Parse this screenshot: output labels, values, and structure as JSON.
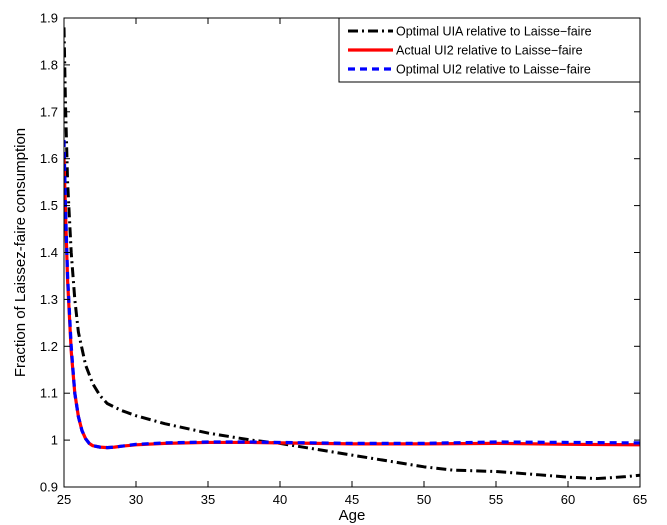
{
  "chart_data": {
    "type": "line",
    "title": "",
    "xlabel": "Age",
    "ylabel": "Fraction of Laissez-faire consumption",
    "xlim": [
      25,
      65
    ],
    "ylim": [
      0.9,
      1.9
    ],
    "xticks": [
      25,
      30,
      35,
      40,
      45,
      50,
      55,
      60,
      65
    ],
    "yticks": [
      0.9,
      1,
      1.1,
      1.2,
      1.3,
      1.4,
      1.5,
      1.6,
      1.7,
      1.8,
      1.9
    ],
    "xtick_labels": [
      "25",
      "30",
      "35",
      "40",
      "45",
      "50",
      "55",
      "60",
      "65"
    ],
    "ytick_labels": [
      "0.9",
      "1",
      "1.1",
      "1.2",
      "1.3",
      "1.4",
      "1.5",
      "1.6",
      "1.7",
      "1.8",
      "1.9"
    ],
    "grid": false,
    "legend_position": "top-right",
    "series": [
      {
        "name": "Optimal UIA relative to Laisse−faire",
        "color": "#000000",
        "style": "dashdot",
        "x": [
          25.0,
          25.1,
          25.25,
          25.5,
          25.75,
          26.0,
          26.5,
          27.0,
          27.5,
          28.0,
          29.0,
          30.0,
          32.0,
          35.0,
          38.0,
          40.0,
          42.0,
          45.0,
          48.0,
          50.0,
          52.0,
          55.0,
          58.0,
          60.0,
          62.0,
          64.0,
          65.0
        ],
        "y": [
          1.88,
          1.72,
          1.55,
          1.4,
          1.3,
          1.23,
          1.16,
          1.12,
          1.095,
          1.078,
          1.063,
          1.052,
          1.035,
          1.015,
          1.0,
          0.993,
          0.983,
          0.968,
          0.953,
          0.943,
          0.936,
          0.933,
          0.926,
          0.921,
          0.918,
          0.922,
          0.925
        ]
      },
      {
        "name": "Actual UI2 relative to Laisse−faire",
        "color": "#ff0000",
        "style": "solid",
        "x": [
          25.0,
          25.1,
          25.25,
          25.5,
          25.75,
          26.0,
          26.25,
          26.5,
          26.75,
          27.0,
          27.5,
          28.0,
          28.5,
          29.0,
          30.0,
          32.0,
          35.0,
          38.0,
          40.0,
          45.0,
          50.0,
          55.0,
          60.0,
          65.0
        ],
        "y": [
          1.6,
          1.49,
          1.34,
          1.19,
          1.1,
          1.05,
          1.02,
          1.003,
          0.993,
          0.988,
          0.985,
          0.984,
          0.985,
          0.987,
          0.99,
          0.993,
          0.995,
          0.995,
          0.994,
          0.992,
          0.992,
          0.993,
          0.991,
          0.99
        ]
      },
      {
        "name": "Optimal UI2 relative to Laisse−faire",
        "color": "#0000ff",
        "style": "dashed",
        "x": [
          25.0,
          25.1,
          25.25,
          25.5,
          25.75,
          26.0,
          26.25,
          26.5,
          26.75,
          27.0,
          27.5,
          28.0,
          28.5,
          29.0,
          30.0,
          32.0,
          35.0,
          38.0,
          40.0,
          45.0,
          50.0,
          55.0,
          60.0,
          65.0
        ],
        "y": [
          1.64,
          1.5,
          1.35,
          1.2,
          1.1,
          1.05,
          1.02,
          1.003,
          0.993,
          0.988,
          0.985,
          0.984,
          0.985,
          0.987,
          0.991,
          0.994,
          0.996,
          0.996,
          0.995,
          0.993,
          0.993,
          0.996,
          0.995,
          0.994
        ]
      }
    ]
  }
}
